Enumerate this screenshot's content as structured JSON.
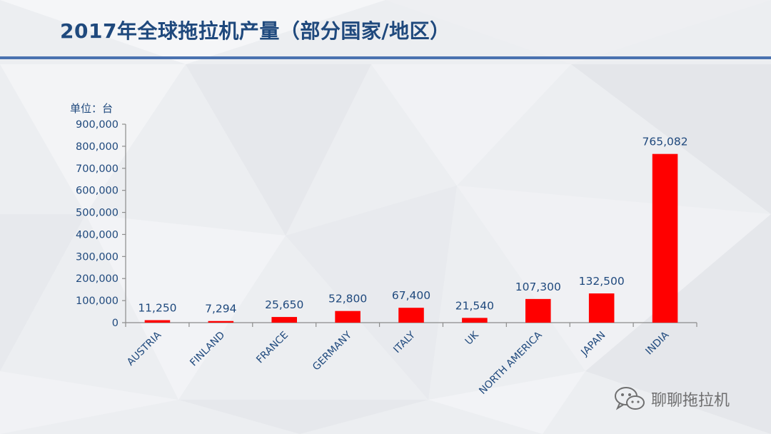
{
  "slide": {
    "title": "2017年全球拖拉机产量（部分国家/地区）",
    "watermark": "聊聊拖拉机"
  },
  "colors": {
    "title": "#1f497d",
    "rule": "#4a72b0",
    "bar": "#ff0000",
    "axis_text": "#1f497d"
  },
  "icons": {
    "watermark": "wechat-icon"
  },
  "chart_data": {
    "type": "bar",
    "unit_label": "单位：台",
    "categories": [
      "AUSTRIA",
      "FINLAND",
      "FRANCE",
      "GERMANY",
      "ITALY",
      "UK",
      "NORTH AMERICA",
      "JAPAN",
      "INDIA"
    ],
    "values": [
      11250,
      7294,
      25650,
      52800,
      67400,
      21540,
      107300,
      132500,
      765082
    ],
    "value_labels": [
      "11,250",
      "7,294",
      "25,650",
      "52,800",
      "67,400",
      "21,540",
      "107,300",
      "132,500",
      "765,082"
    ],
    "ylim": [
      0,
      900000
    ],
    "yticks": [
      0,
      100000,
      200000,
      300000,
      400000,
      500000,
      600000,
      700000,
      800000,
      900000
    ],
    "ytick_labels": [
      "0",
      "100,000",
      "200,000",
      "300,000",
      "400,000",
      "500,000",
      "600,000",
      "700,000",
      "800,000",
      "900,000"
    ],
    "grid": false,
    "legend": "none"
  }
}
